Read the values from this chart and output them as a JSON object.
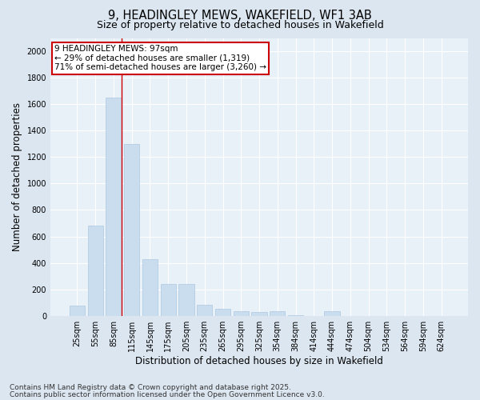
{
  "title": "9, HEADINGLEY MEWS, WAKEFIELD, WF1 3AB",
  "subtitle": "Size of property relative to detached houses in Wakefield",
  "xlabel": "Distribution of detached houses by size in Wakefield",
  "ylabel": "Number of detached properties",
  "categories": [
    "25sqm",
    "55sqm",
    "85sqm",
    "115sqm",
    "145sqm",
    "175sqm",
    "205sqm",
    "235sqm",
    "265sqm",
    "295sqm",
    "325sqm",
    "354sqm",
    "384sqm",
    "414sqm",
    "444sqm",
    "474sqm",
    "504sqm",
    "534sqm",
    "564sqm",
    "594sqm",
    "624sqm"
  ],
  "values": [
    75,
    680,
    1650,
    1300,
    430,
    240,
    240,
    85,
    55,
    35,
    30,
    35,
    5,
    0,
    35,
    0,
    0,
    0,
    0,
    0,
    0
  ],
  "bar_color": "#c9ddef",
  "bar_edge_color": "#adc8e0",
  "bar_linewidth": 0.5,
  "vline_x_index": 2,
  "vline_color": "#cc0000",
  "annotation_text": "9 HEADINGLEY MEWS: 97sqm\n← 29% of detached houses are smaller (1,319)\n71% of semi-detached houses are larger (3,260) →",
  "annotation_box_color": "#ffffff",
  "annotation_box_edge_color": "#cc0000",
  "ylim": [
    0,
    2100
  ],
  "yticks": [
    0,
    200,
    400,
    600,
    800,
    1000,
    1200,
    1400,
    1600,
    1800,
    2000
  ],
  "footnote1": "Contains HM Land Registry data © Crown copyright and database right 2025.",
  "footnote2": "Contains public sector information licensed under the Open Government Licence v3.0.",
  "bg_color": "#dce6f0",
  "plot_bg_color": "#e8f0f8",
  "grid_color": "#ffffff",
  "title_fontsize": 10.5,
  "subtitle_fontsize": 9,
  "axis_label_fontsize": 8.5,
  "tick_fontsize": 7,
  "annotation_fontsize": 7.5,
  "footnote_fontsize": 6.5
}
